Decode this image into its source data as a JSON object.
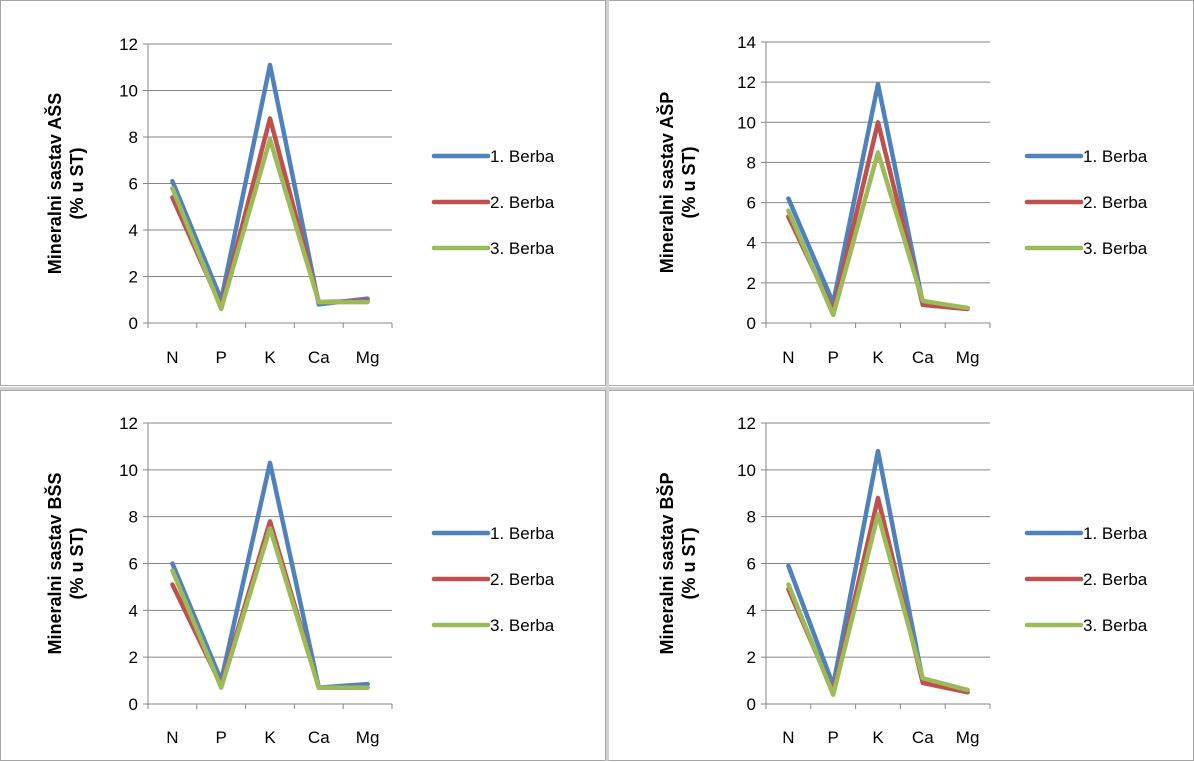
{
  "chart_data": [
    {
      "type": "line",
      "ylabel_lines": [
        "Mineralni sastav AŠS",
        "(% u ST)"
      ],
      "categories": [
        "N",
        "P",
        "K",
        "Ca",
        "Mg"
      ],
      "ylim": [
        0,
        12
      ],
      "yticks": [
        0,
        2,
        4,
        6,
        8,
        10,
        12
      ],
      "grid": true,
      "legend": "right",
      "series": [
        {
          "name": "1. Berba",
          "color": "#4f81bd",
          "values": [
            6.1,
            1.0,
            11.1,
            0.8,
            1.05
          ]
        },
        {
          "name": "2. Berba",
          "color": "#c0504d",
          "values": [
            5.4,
            0.7,
            8.8,
            0.9,
            0.95
          ]
        },
        {
          "name": "3. Berba",
          "color": "#9bbb59",
          "values": [
            5.8,
            0.6,
            7.9,
            0.9,
            0.9
          ]
        }
      ]
    },
    {
      "type": "line",
      "ylabel_lines": [
        "Mineralni sastav AŠP",
        "(% u ST)"
      ],
      "categories": [
        "N",
        "P",
        "K",
        "Ca",
        "Mg"
      ],
      "ylim": [
        0,
        14
      ],
      "yticks": [
        0,
        2,
        4,
        6,
        8,
        10,
        12,
        14
      ],
      "grid": true,
      "legend": "right",
      "series": [
        {
          "name": "1. Berba",
          "color": "#4f81bd",
          "values": [
            6.2,
            1.0,
            11.9,
            1.0,
            0.75
          ]
        },
        {
          "name": "2. Berba",
          "color": "#c0504d",
          "values": [
            5.3,
            0.6,
            10.0,
            0.9,
            0.7
          ]
        },
        {
          "name": "3. Berba",
          "color": "#9bbb59",
          "values": [
            5.6,
            0.4,
            8.5,
            1.1,
            0.75
          ]
        }
      ]
    },
    {
      "type": "line",
      "ylabel_lines": [
        "Mineralni sastav BŠS",
        "(% u ST)"
      ],
      "categories": [
        "N",
        "P",
        "K",
        "Ca",
        "Mg"
      ],
      "ylim": [
        0,
        12
      ],
      "yticks": [
        0,
        2,
        4,
        6,
        8,
        10,
        12
      ],
      "grid": true,
      "legend": "right",
      "series": [
        {
          "name": "1. Berba",
          "color": "#4f81bd",
          "values": [
            6.0,
            1.0,
            10.3,
            0.7,
            0.85
          ]
        },
        {
          "name": "2. Berba",
          "color": "#c0504d",
          "values": [
            5.1,
            0.8,
            7.8,
            0.7,
            0.7
          ]
        },
        {
          "name": "3. Berba",
          "color": "#9bbb59",
          "values": [
            5.7,
            0.7,
            7.5,
            0.7,
            0.7
          ]
        }
      ]
    },
    {
      "type": "line",
      "ylabel_lines": [
        "Mineralni sastav BŠP",
        "(% u ST)"
      ],
      "categories": [
        "N",
        "P",
        "K",
        "Ca",
        "Mg"
      ],
      "ylim": [
        0,
        12
      ],
      "yticks": [
        0,
        2,
        4,
        6,
        8,
        10,
        12
      ],
      "grid": true,
      "legend": "right",
      "series": [
        {
          "name": "1. Berba",
          "color": "#4f81bd",
          "values": [
            5.9,
            0.8,
            10.8,
            1.0,
            0.6
          ]
        },
        {
          "name": "2. Berba",
          "color": "#c0504d",
          "values": [
            4.9,
            0.5,
            8.8,
            0.9,
            0.5
          ]
        },
        {
          "name": "3. Berba",
          "color": "#9bbb59",
          "values": [
            5.1,
            0.4,
            8.1,
            1.1,
            0.6
          ]
        }
      ]
    }
  ]
}
